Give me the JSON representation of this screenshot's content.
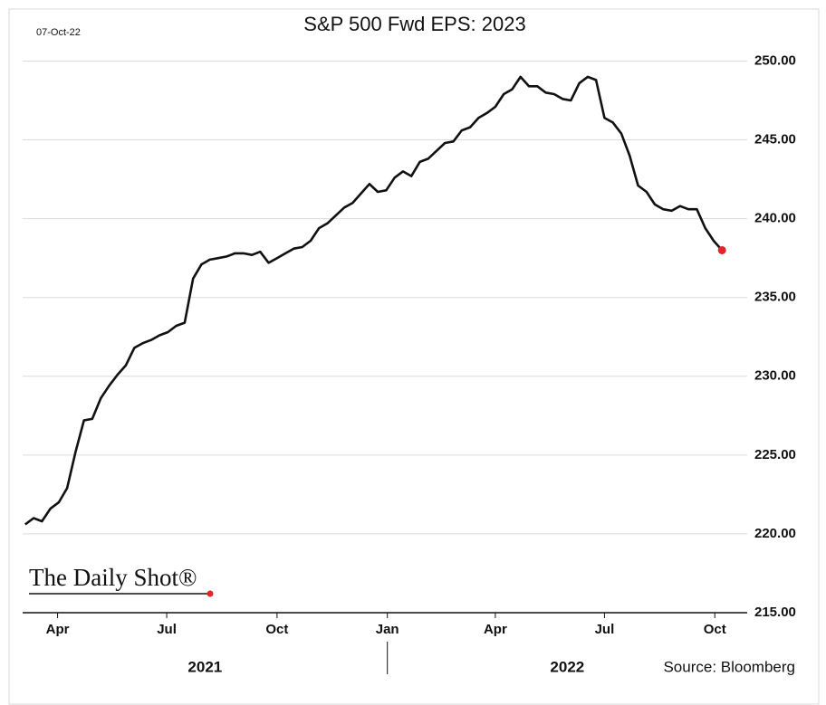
{
  "chart_data": {
    "type": "line",
    "date": "07-Oct-22",
    "title": "S&P 500 Fwd EPS: 2023",
    "watermark": "The Daily Shot®",
    "source": "Source: Bloomberg",
    "x": [
      0,
      1,
      2,
      3,
      4,
      5,
      6,
      7,
      8,
      9,
      10,
      11,
      12,
      13,
      14,
      15,
      16,
      17,
      18,
      19,
      20,
      21,
      22,
      23,
      24,
      25,
      26,
      27,
      28,
      29,
      30,
      31,
      32,
      33,
      34,
      35,
      36,
      37,
      38,
      39,
      40,
      41,
      42,
      43,
      44,
      45,
      46,
      47,
      48,
      49,
      50,
      51,
      52,
      53,
      54,
      55,
      56,
      57,
      58,
      59,
      60,
      61,
      62,
      63,
      64,
      65,
      66,
      67,
      68,
      69,
      70,
      71,
      72,
      73,
      74,
      75,
      76,
      77,
      78,
      79,
      80,
      81,
      82,
      83
    ],
    "series": [
      {
        "color": "#111111",
        "end_marker_color": "#e02626",
        "values": [
          220.6,
          221.0,
          220.8,
          221.6,
          222.0,
          222.9,
          225.2,
          227.2,
          227.3,
          228.6,
          229.4,
          230.1,
          230.7,
          231.8,
          232.1,
          232.3,
          232.6,
          232.8,
          233.2,
          233.4,
          236.2,
          237.1,
          237.4,
          237.5,
          237.6,
          237.8,
          237.8,
          237.7,
          237.9,
          237.2,
          237.5,
          237.8,
          238.1,
          238.2,
          238.6,
          239.4,
          239.7,
          240.2,
          240.7,
          241.0,
          241.6,
          242.2,
          241.7,
          241.8,
          242.6,
          243.0,
          242.7,
          243.6,
          243.8,
          244.3,
          244.8,
          244.9,
          245.6,
          245.8,
          246.4,
          246.7,
          247.1,
          247.9,
          248.2,
          249.0,
          248.4,
          248.4,
          248.0,
          247.9,
          247.6,
          247.5,
          248.6,
          249.0,
          248.8,
          246.4,
          246.1,
          245.4,
          244.0,
          242.1,
          241.7,
          240.9,
          240.6,
          240.5,
          240.8,
          240.6,
          240.6,
          239.4,
          238.6,
          238.0
        ]
      }
    ],
    "xlim": [
      -0.3,
      86
    ],
    "xticks": [
      {
        "value": 3.86,
        "label": "Apr"
      },
      {
        "value": 16.86,
        "label": "Jul"
      },
      {
        "value": 30,
        "label": "Oct"
      },
      {
        "value": 43.14,
        "label": "Jan"
      },
      {
        "value": 56,
        "label": "Apr"
      },
      {
        "value": 69,
        "label": "Jul"
      },
      {
        "value": 82.14,
        "label": "Oct"
      }
    ],
    "year_labels": [
      "2021",
      "2022"
    ],
    "ylim": [
      215,
      253.3
    ],
    "yticks": [
      {
        "value": 215,
        "label": "215.00"
      },
      {
        "value": 220,
        "label": "220.00"
      },
      {
        "value": 225,
        "label": "225.00"
      },
      {
        "value": 230,
        "label": "230.00"
      },
      {
        "value": 235,
        "label": "235.00"
      },
      {
        "value": 240,
        "label": "240.00"
      },
      {
        "value": 245,
        "label": "245.00"
      },
      {
        "value": 250,
        "label": "250.00"
      }
    ],
    "grid": true
  }
}
